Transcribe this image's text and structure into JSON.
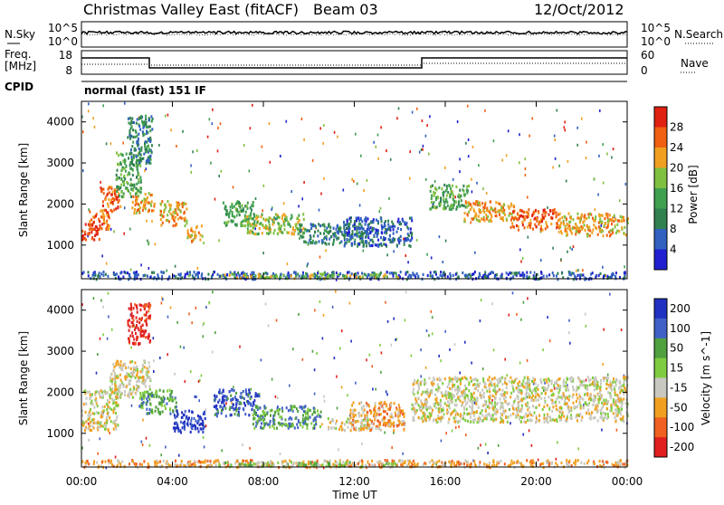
{
  "header": {
    "station": "Christmas Valley East (fitACF)",
    "beam": "Beam 03",
    "date": "12/Oct/2012"
  },
  "noise_panel": {
    "left_label": "N.Sky",
    "left_ticks": [
      "10^5",
      "10^0"
    ],
    "right_ticks": [
      "10^5",
      "10^0"
    ],
    "right_label": "N.Search"
  },
  "freq_panel": {
    "left_label_line1": "Freq.",
    "left_label_line2": "[MHz]",
    "left_ticks": [
      "18",
      "8"
    ],
    "right_ticks": [
      "60",
      "0"
    ],
    "right_label": "Nave"
  },
  "cpid": {
    "label": "CPID",
    "value": "normal (fast) 151 IF"
  },
  "x_axis": {
    "title": "Time UT",
    "ticks": [
      "00:00",
      "04:00",
      "08:00",
      "12:00",
      "16:00",
      "20:00",
      "00:00"
    ]
  },
  "chart_data": [
    {
      "type": "heatmap",
      "name": "power",
      "ylabel": "Slant Range [km]",
      "yticks": [
        "1000",
        "2000",
        "3000",
        "4000"
      ],
      "ylim": [
        180,
        4500
      ],
      "xlim_hours": [
        0,
        24
      ],
      "colorbar": {
        "label": "Power [dB]",
        "ticks": [
          "4",
          "8",
          "12",
          "16",
          "20",
          "24",
          "28"
        ],
        "colors": [
          "#2020d0",
          "#3060c0",
          "#308050",
          "#40a050",
          "#80c040",
          "#f0a020",
          "#f06010",
          "#e02010"
        ]
      },
      "bands": [
        {
          "t0": 0.0,
          "t1": 0.8,
          "r0": 1150,
          "r1": 1550,
          "level": 7
        },
        {
          "t0": 0.3,
          "t1": 1.2,
          "r0": 1400,
          "r1": 1900,
          "level": 6
        },
        {
          "t0": 0.8,
          "t1": 1.7,
          "r0": 1850,
          "r1": 2450,
          "level": 6
        },
        {
          "t0": 1.5,
          "t1": 2.6,
          "r0": 2200,
          "r1": 3300,
          "level": 3
        },
        {
          "t0": 2.0,
          "t1": 3.1,
          "r0": 3000,
          "r1": 4200,
          "level": 2
        },
        {
          "t0": 2.2,
          "t1": 3.2,
          "r0": 1800,
          "r1": 2300,
          "level": 5
        },
        {
          "t0": 3.4,
          "t1": 4.6,
          "r0": 1500,
          "r1": 2100,
          "level": 5
        },
        {
          "t0": 4.6,
          "t1": 5.3,
          "r0": 1100,
          "r1": 1500,
          "level": 5
        },
        {
          "t0": 6.2,
          "t1": 7.6,
          "r0": 1500,
          "r1": 2100,
          "level": 3
        },
        {
          "t0": 7.2,
          "t1": 9.8,
          "r0": 1300,
          "r1": 1800,
          "level": 4
        },
        {
          "t0": 9.5,
          "t1": 12.5,
          "r0": 1050,
          "r1": 1550,
          "level": 2
        },
        {
          "t0": 11.5,
          "t1": 14.5,
          "r0": 1000,
          "r1": 1700,
          "level": 1
        },
        {
          "t0": 15.3,
          "t1": 17.0,
          "r0": 1900,
          "r1": 2500,
          "level": 3
        },
        {
          "t0": 16.8,
          "t1": 19.0,
          "r0": 1600,
          "r1": 2100,
          "level": 5
        },
        {
          "t0": 18.8,
          "t1": 21.0,
          "r0": 1400,
          "r1": 1900,
          "level": 6
        },
        {
          "t0": 21.0,
          "t1": 24.0,
          "r0": 1250,
          "r1": 1800,
          "level": 5
        },
        {
          "t0": 0.0,
          "t1": 24.0,
          "r0": 200,
          "r1": 380,
          "level": 1
        },
        {
          "t0": 6.0,
          "t1": 14.0,
          "r0": 220,
          "r1": 330,
          "level": 4
        }
      ]
    },
    {
      "type": "heatmap",
      "name": "velocity",
      "ylabel": "Slant Range [km]",
      "yticks": [
        "1000",
        "2000",
        "3000",
        "4000"
      ],
      "ylim": [
        180,
        4500
      ],
      "xlim_hours": [
        0,
        24
      ],
      "colorbar": {
        "label": "Velocity [m s^-1]",
        "ticks": [
          "200",
          "100",
          "50",
          "15",
          "-15",
          "-50",
          "-100",
          "-200"
        ],
        "colors": [
          "#2030c0",
          "#4060c8",
          "#50a040",
          "#80cc40",
          "#c8c8c0",
          "#f0a020",
          "#f06020",
          "#e02020"
        ]
      },
      "bands": [
        {
          "t0": 0.0,
          "t1": 1.6,
          "r0": 1100,
          "r1": 2100,
          "level": 4
        },
        {
          "t0": 1.2,
          "t1": 3.0,
          "r0": 1900,
          "r1": 2800,
          "level": 4
        },
        {
          "t0": 2.0,
          "t1": 3.0,
          "r0": 3200,
          "r1": 4200,
          "level": 7
        },
        {
          "t0": 2.5,
          "t1": 4.2,
          "r0": 1500,
          "r1": 2100,
          "level": 2
        },
        {
          "t0": 4.0,
          "t1": 5.4,
          "r0": 1050,
          "r1": 1600,
          "level": 0
        },
        {
          "t0": 5.8,
          "t1": 7.8,
          "r0": 1450,
          "r1": 2100,
          "level": 1
        },
        {
          "t0": 7.5,
          "t1": 10.5,
          "r0": 1150,
          "r1": 1700,
          "level": 2
        },
        {
          "t0": 10.8,
          "t1": 12.6,
          "r0": 1100,
          "r1": 1400,
          "level": 4
        },
        {
          "t0": 11.8,
          "t1": 14.2,
          "r0": 1100,
          "r1": 1800,
          "level": 5
        },
        {
          "t0": 14.5,
          "t1": 24.0,
          "r0": 1300,
          "r1": 2400,
          "level": 4
        },
        {
          "t0": 0.0,
          "t1": 24.0,
          "r0": 200,
          "r1": 380,
          "level": 5
        },
        {
          "t0": 6.0,
          "t1": 14.0,
          "r0": 220,
          "r1": 330,
          "level": 3
        }
      ]
    }
  ]
}
